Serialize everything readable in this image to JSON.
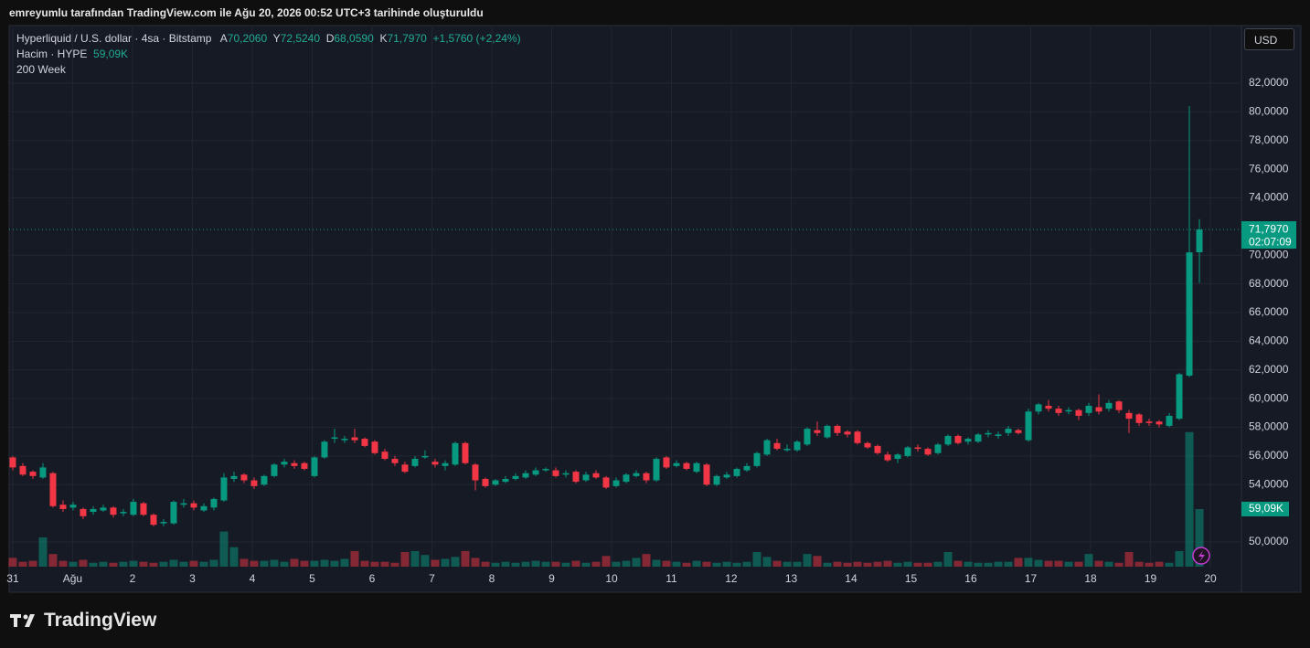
{
  "caption": "emreyumlu tarafından TradingView.com ile Ağu 20, 2026 00:52 UTC+3 tarihinde oluşturuldu",
  "legend": {
    "symbol": "Hyperliquid / U.S. dollar · 4sa · Bitstamp",
    "open": {
      "prefix": "A",
      "label": "70,2060"
    },
    "high": {
      "prefix": "Y",
      "label": "72,5240"
    },
    "low": {
      "prefix": "D",
      "label": "68,0590"
    },
    "close": {
      "prefix": "K",
      "label": "71,7970"
    },
    "change": "+1,5760 (+2,24%)",
    "volume_title": "Hacim · HYPE",
    "volume_label": "59,09K",
    "indicator": "200 Week"
  },
  "currency": "USD",
  "brand": "TradingView",
  "chart_data": {
    "type": "candlestick",
    "colors": {
      "up": "#089981",
      "down": "#f23645"
    },
    "open": [
      55.9,
      55.3,
      54.9,
      54.5,
      54.8,
      52.6,
      52.4,
      52.3,
      52.1,
      52.2,
      52.4,
      52.0,
      51.9,
      52.7,
      51.9,
      51.3,
      51.3,
      52.6,
      52.7,
      52.2,
      52.4,
      52.9,
      54.4,
      54.7,
      54.3,
      54.0,
      54.6,
      55.4,
      55.5,
      55.5,
      54.6,
      55.9,
      57.2,
      57.1,
      57.3,
      57.2,
      57.0,
      56.3,
      55.8,
      55.4,
      55.3,
      55.9,
      55.6,
      55.3,
      55.4,
      56.9,
      55.4,
      54.4,
      54.0,
      54.2,
      54.4,
      54.5,
      54.7,
      55.0,
      55.0,
      54.7,
      54.9,
      54.3,
      54.8,
      54.5,
      53.9,
      54.2,
      54.6,
      54.8,
      54.3,
      55.9,
      55.3,
      55.5,
      54.9,
      55.4,
      54.0,
      54.5,
      54.6,
      55.0,
      55.3,
      56.1,
      56.9,
      56.4,
      56.4,
      56.8,
      57.8,
      57.3,
      58.1,
      57.7,
      57.7,
      56.9,
      56.7,
      56.1,
      55.8,
      56.0,
      56.6,
      56.5,
      56.2,
      56.8,
      57.4,
      57.0,
      57.0,
      57.5,
      57.4,
      57.6,
      57.8,
      57.1,
      59.1,
      59.5,
      59.3,
      59.1,
      59.2,
      59.0,
      59.4,
      59.3,
      59.8,
      59.0,
      58.9,
      58.4,
      58.4,
      58.1,
      58.6,
      61.6,
      70.206
    ],
    "high": [
      56.0,
      55.5,
      55.0,
      55.5,
      54.9,
      52.9,
      52.8,
      52.4,
      52.5,
      52.6,
      52.5,
      52.3,
      53.0,
      52.8,
      52.0,
      51.6,
      52.9,
      53.0,
      52.9,
      52.7,
      53.1,
      54.8,
      54.9,
      54.8,
      54.5,
      54.7,
      55.5,
      55.8,
      55.7,
      55.6,
      56.0,
      57.1,
      57.9,
      57.4,
      57.9,
      57.3,
      57.1,
      56.5,
      56.0,
      55.6,
      56.0,
      56.4,
      55.8,
      55.7,
      57.0,
      57.0,
      55.5,
      54.5,
      54.4,
      54.6,
      54.8,
      55.0,
      55.2,
      55.2,
      55.2,
      55.0,
      55.0,
      54.9,
      55.0,
      54.6,
      54.5,
      54.8,
      55.0,
      54.9,
      55.9,
      56.0,
      55.7,
      55.6,
      55.6,
      55.5,
      54.7,
      54.9,
      55.2,
      55.5,
      56.3,
      57.2,
      57.2,
      56.8,
      57.1,
      58.0,
      58.4,
      58.2,
      58.2,
      57.8,
      57.8,
      57.0,
      56.8,
      56.3,
      56.2,
      56.7,
      56.8,
      56.6,
      56.9,
      57.5,
      57.5,
      57.3,
      57.6,
      57.8,
      57.7,
      58.1,
      57.9,
      59.3,
      59.7,
      59.9,
      59.5,
      59.4,
      59.3,
      59.7,
      60.3,
      59.9,
      59.9,
      59.2,
      59.0,
      58.6,
      58.5,
      59.0,
      61.8,
      80.4,
      72.524
    ],
    "low": [
      55.0,
      54.6,
      54.4,
      54.4,
      52.4,
      52.1,
      52.2,
      51.6,
      51.9,
      52.1,
      51.7,
      51.8,
      51.8,
      51.8,
      51.1,
      51.1,
      51.2,
      52.4,
      52.2,
      52.1,
      52.2,
      52.8,
      54.2,
      54.1,
      53.7,
      53.9,
      54.5,
      55.2,
      55.1,
      55.0,
      54.5,
      55.8,
      56.9,
      56.9,
      56.9,
      56.6,
      56.1,
      55.7,
      55.3,
      54.8,
      55.2,
      55.8,
      55.2,
      55.0,
      55.3,
      55.4,
      53.6,
      53.8,
      53.9,
      54.1,
      54.3,
      54.4,
      54.6,
      54.9,
      54.5,
      54.5,
      54.1,
      54.2,
      54.4,
      53.7,
      53.8,
      54.1,
      54.5,
      54.1,
      54.2,
      55.1,
      55.2,
      55.0,
      54.8,
      53.9,
      53.9,
      54.4,
      54.5,
      54.9,
      55.2,
      56.0,
      56.4,
      56.3,
      56.3,
      56.7,
      57.4,
      57.2,
      57.4,
      57.3,
      56.8,
      56.5,
      56.1,
      55.6,
      55.5,
      55.9,
      56.3,
      56.0,
      56.1,
      56.7,
      56.8,
      56.8,
      56.9,
      57.3,
      57.2,
      57.4,
      57.5,
      57.0,
      58.9,
      59.1,
      58.8,
      58.9,
      58.5,
      58.8,
      58.9,
      59.1,
      59.0,
      57.6,
      58.1,
      58.1,
      58.0,
      58.0,
      58.5,
      61.5,
      68.059
    ],
    "close": [
      55.2,
      54.7,
      54.6,
      55.2,
      52.5,
      52.3,
      52.6,
      51.8,
      52.3,
      52.4,
      51.9,
      52.1,
      52.8,
      51.9,
      51.2,
      51.4,
      52.8,
      52.7,
      52.4,
      52.5,
      53.0,
      54.5,
      54.6,
      54.3,
      53.9,
      54.6,
      55.4,
      55.6,
      55.3,
      55.1,
      55.9,
      57.0,
      57.3,
      57.2,
      57.1,
      56.7,
      56.2,
      55.8,
      55.5,
      54.9,
      55.8,
      56.0,
      55.4,
      55.5,
      56.9,
      55.5,
      54.3,
      53.9,
      54.3,
      54.4,
      54.6,
      54.8,
      55.0,
      55.1,
      54.6,
      54.8,
      54.2,
      54.7,
      54.5,
      53.8,
      54.3,
      54.7,
      54.8,
      54.3,
      55.8,
      55.2,
      55.5,
      55.1,
      55.5,
      54.0,
      54.6,
      54.7,
      55.1,
      55.3,
      56.2,
      57.1,
      56.5,
      56.5,
      57.0,
      57.9,
      57.6,
      58.1,
      57.6,
      57.5,
      56.9,
      56.6,
      56.2,
      55.7,
      56.1,
      56.6,
      56.5,
      56.1,
      56.8,
      57.4,
      56.9,
      57.2,
      57.5,
      57.6,
      57.5,
      57.9,
      57.6,
      59.1,
      59.6,
      59.3,
      59.0,
      59.2,
      58.8,
      59.5,
      59.1,
      59.7,
      59.2,
      58.6,
      58.3,
      58.3,
      58.2,
      58.8,
      61.7,
      70.2,
      71.797
    ],
    "volume": [
      9,
      5,
      6,
      30,
      13,
      6,
      5,
      7,
      4,
      5,
      4,
      5,
      6,
      5,
      4,
      5,
      7,
      5,
      6,
      5,
      7,
      36,
      20,
      8,
      6,
      6,
      7,
      5,
      8,
      6,
      6,
      7,
      6,
      8,
      16,
      6,
      5,
      5,
      4,
      15,
      16,
      12,
      7,
      8,
      10,
      16,
      9,
      5,
      4,
      5,
      4,
      5,
      6,
      5,
      5,
      4,
      6,
      4,
      5,
      11,
      5,
      6,
      9,
      13,
      7,
      6,
      5,
      4,
      6,
      5,
      4,
      5,
      4,
      5,
      15,
      10,
      6,
      5,
      5,
      13,
      11,
      4,
      5,
      4,
      5,
      4,
      5,
      6,
      4,
      5,
      4,
      4,
      5,
      15,
      6,
      5,
      4,
      4,
      5,
      5,
      9,
      9,
      7,
      6,
      6,
      5,
      5,
      13,
      6,
      5,
      4,
      15,
      5,
      4,
      5,
      4,
      16,
      138,
      59.09
    ],
    "ylim": [
      48.28,
      85.89
    ],
    "yticks": [
      {
        "value": 50,
        "label": "50,0000"
      },
      {
        "value": 54,
        "label": "54,0000"
      },
      {
        "value": 56,
        "label": "56,0000"
      },
      {
        "value": 58,
        "label": "58,0000"
      },
      {
        "value": 60,
        "label": "60,0000"
      },
      {
        "value": 62,
        "label": "62,0000"
      },
      {
        "value": 64,
        "label": "64,0000"
      },
      {
        "value": 66,
        "label": "66,0000"
      },
      {
        "value": 68,
        "label": "68,0000"
      },
      {
        "value": 70,
        "label": "70,0000"
      },
      {
        "value": 74,
        "label": "74,0000"
      },
      {
        "value": 76,
        "label": "76,0000"
      },
      {
        "value": 78,
        "label": "78,0000"
      },
      {
        "value": 80,
        "label": "80,0000"
      },
      {
        "value": 82,
        "label": "82,0000"
      }
    ],
    "xlim": [
      -0.36,
      122.18
    ],
    "xticks": [
      {
        "value": 0,
        "label": "31"
      },
      {
        "value": 5.95,
        "label": "Ağu"
      },
      {
        "value": 11.91,
        "label": "2"
      },
      {
        "value": 17.86,
        "label": "3"
      },
      {
        "value": 23.82,
        "label": "4"
      },
      {
        "value": 29.77,
        "label": "5"
      },
      {
        "value": 35.73,
        "label": "6"
      },
      {
        "value": 41.68,
        "label": "7"
      },
      {
        "value": 47.64,
        "label": "8"
      },
      {
        "value": 53.59,
        "label": "9"
      },
      {
        "value": 59.55,
        "label": "10"
      },
      {
        "value": 65.5,
        "label": "11"
      },
      {
        "value": 71.45,
        "label": "12"
      },
      {
        "value": 77.41,
        "label": "13"
      },
      {
        "value": 83.36,
        "label": "14"
      },
      {
        "value": 89.32,
        "label": "15"
      },
      {
        "value": 95.27,
        "label": "16"
      },
      {
        "value": 101.23,
        "label": "17"
      },
      {
        "value": 107.18,
        "label": "18"
      },
      {
        "value": 113.14,
        "label": "19"
      },
      {
        "value": 119.09,
        "label": "20"
      }
    ],
    "volume_ylim": [
      0,
      553
    ],
    "last_price_label": "71,7970",
    "countdown": "02:07:09",
    "last_volume_label": "59,09K",
    "grid": true
  }
}
